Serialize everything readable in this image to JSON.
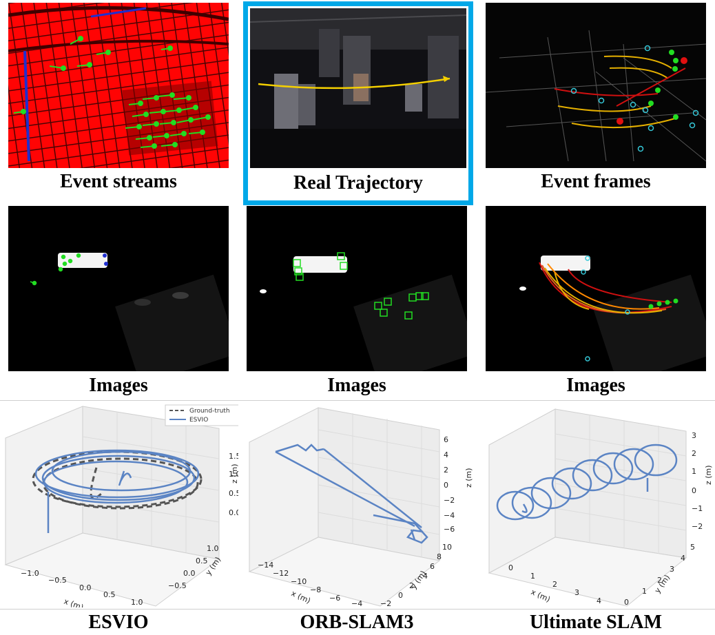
{
  "captions": {
    "event_streams": "Event streams",
    "real_trajectory": "Real Trajectory",
    "event_frames": "Event frames",
    "images_1": "Images",
    "images_2": "Images",
    "images_3": "Images",
    "esvio": "ESVIO",
    "orb_slam3": "ORB-SLAM3",
    "ultimate_slam": "Ultimate SLAM"
  },
  "colors": {
    "highlight": "#00a8e8",
    "event_red": "#ff0000",
    "event_blue": "#1f2fd0",
    "feature_green": "#22dd22",
    "trajectory_yellow": "#f5d000",
    "estimate_blue": "#5b84c4",
    "ground_truth_gray": "#555555"
  },
  "plot_esvio": {
    "legend": [
      "Ground-truth",
      "ESVIO"
    ],
    "zlabel": "z (m)",
    "xlabel": "x (m)",
    "ylabel": "y (m)",
    "z_ticks": [
      "0.0",
      "0.5",
      "1.0",
      "1.5"
    ],
    "x_ticks": [
      "−1.0",
      "−0.5",
      "0.0",
      "0.5",
      "1.0"
    ],
    "y_ticks": [
      "−0.5",
      "0.0",
      "0.5",
      "1.0"
    ]
  },
  "plot_orb": {
    "zlabel": "z (m)",
    "xlabel": "x (m)",
    "ylabel": "y (m)",
    "z_ticks": [
      "6",
      "4",
      "2",
      "0",
      "−2",
      "−4",
      "−6"
    ],
    "x_ticks": [
      "−14",
      "−12",
      "−10",
      "−8",
      "−6",
      "−4"
    ],
    "y_ticks": [
      "−2",
      "0",
      "2",
      "4",
      "6",
      "8",
      "10"
    ]
  },
  "plot_ultimate": {
    "zlabel": "z (m)",
    "xlabel": "x (m)",
    "ylabel": "y (m)",
    "z_ticks": [
      "3",
      "2",
      "1",
      "0",
      "−1",
      "−2"
    ],
    "x_ticks": [
      "0",
      "1",
      "2",
      "3",
      "4"
    ],
    "y_ticks": [
      "0",
      "1",
      "2",
      "3",
      "4",
      "5"
    ]
  }
}
